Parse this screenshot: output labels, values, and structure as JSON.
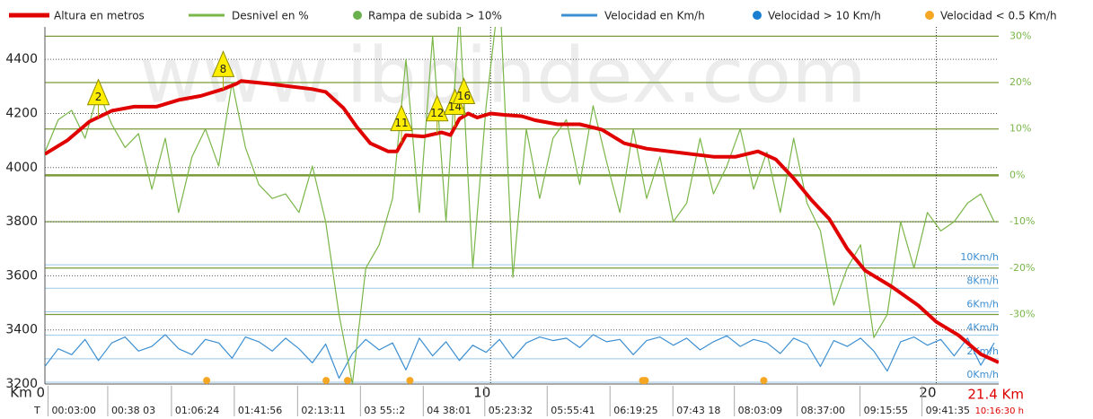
{
  "chart_data": {
    "type": "line",
    "watermark": "www.ibpindex.com",
    "xlim": [
      0,
      21.4
    ],
    "xticks": [
      {
        "value": 0,
        "label": "Km 0"
      },
      10,
      20
    ],
    "total_distance": {
      "value": 21.4,
      "label": "21.4 Km"
    },
    "total_time": "10:16:30 h",
    "time_prefix": "T",
    "time_ticks": [
      {
        "value": 0.15,
        "label": "00:03:00"
      },
      {
        "value": 1.49,
        "label": "00:38 03"
      },
      {
        "value": 2.92,
        "label": "01:06:24"
      },
      {
        "value": 4.33,
        "label": "01:41:56"
      },
      {
        "value": 5.75,
        "label": "02:13:11"
      },
      {
        "value": 7.16,
        "label": "03 55::2"
      },
      {
        "value": 8.57,
        "label": "04 38:01"
      },
      {
        "value": 9.95,
        "label": "05:23:32"
      },
      {
        "value": 11.35,
        "label": "05:55:41"
      },
      {
        "value": 12.76,
        "label": "06:19:25"
      },
      {
        "value": 14.17,
        "label": "07:43 18"
      },
      {
        "value": 15.55,
        "label": "08:03:09"
      },
      {
        "value": 16.96,
        "label": "08:37:00"
      },
      {
        "value": 18.37,
        "label": "09:15:55"
      },
      {
        "value": 19.76,
        "label": "09:41:35"
      }
    ],
    "ylim": [
      3200,
      4520
    ],
    "yticks": [
      3200,
      3400,
      3600,
      3800,
      4000,
      4200,
      4400
    ],
    "y2lim": [
      -45,
      32
    ],
    "y2ticks": [
      {
        "value": 30,
        "label": "30%"
      },
      {
        "value": 20,
        "label": "20%"
      },
      {
        "value": 10,
        "label": "10%"
      },
      {
        "value": 0,
        "label": "0%"
      },
      {
        "value": -10,
        "label": "-10%"
      },
      {
        "value": -20,
        "label": "-20%"
      },
      {
        "value": -30,
        "label": "-30%"
      }
    ],
    "y3lim": [
      0,
      30.4
    ],
    "y3ticks": [
      {
        "value": 10,
        "label": "10Km/h"
      },
      {
        "value": 8,
        "label": "8Km/h"
      },
      {
        "value": 6,
        "label": "6Km/h"
      },
      {
        "value": 4,
        "label": "4Km/h"
      },
      {
        "value": 2,
        "label": "2Km/h"
      },
      {
        "value": 0,
        "label": "0Km/h"
      }
    ],
    "series": [
      {
        "name": "Altura en metros",
        "color": "#e00000",
        "style": "line",
        "axis": "y",
        "x": [
          0,
          0.5,
          1.0,
          1.5,
          2,
          2.5,
          3,
          3.5,
          4,
          4.3,
          4.4,
          5,
          5.5,
          6,
          6.3,
          6.7,
          7,
          7.3,
          7.7,
          7.9,
          8.1,
          8.5,
          8.9,
          9.1,
          9.3,
          9.5,
          9.7,
          10,
          10.3,
          10.7,
          11,
          11.5,
          12,
          12.5,
          13,
          13.5,
          14,
          14.5,
          15,
          15.5,
          16,
          16.4,
          16.8,
          17.2,
          17.6,
          18,
          18.4,
          19,
          19.6,
          20,
          20.5,
          21,
          21.4
        ],
        "values": [
          4050,
          4100,
          4170,
          4210,
          4225,
          4225,
          4250,
          4265,
          4290,
          4310,
          4320,
          4310,
          4300,
          4290,
          4280,
          4220,
          4150,
          4090,
          4060,
          4060,
          4120,
          4115,
          4130,
          4120,
          4180,
          4200,
          4185,
          4200,
          4195,
          4190,
          4175,
          4160,
          4160,
          4140,
          4090,
          4070,
          4060,
          4050,
          4040,
          4040,
          4060,
          4030,
          3960,
          3880,
          3810,
          3700,
          3620,
          3560,
          3490,
          3430,
          3380,
          3310,
          3280
        ]
      },
      {
        "name": "Desnivel en %",
        "color": "#7ab648",
        "style": "line",
        "axis": "y2",
        "x": [
          0,
          0.3,
          0.6,
          0.9,
          1.2,
          1.5,
          1.8,
          2.1,
          2.4,
          2.7,
          3,
          3.3,
          3.6,
          3.9,
          4.2,
          4.5,
          4.8,
          5.1,
          5.4,
          5.7,
          6,
          6.3,
          6.6,
          6.9,
          7.2,
          7.5,
          7.8,
          8.1,
          8.4,
          8.7,
          9,
          9.3,
          9.6,
          9.9,
          10.2,
          10.5,
          10.8,
          11.1,
          11.4,
          11.7,
          12,
          12.3,
          12.6,
          12.9,
          13.2,
          13.5,
          13.8,
          14.1,
          14.4,
          14.7,
          15,
          15.3,
          15.6,
          15.9,
          16.2,
          16.5,
          16.8,
          17.1,
          17.4,
          17.7,
          18,
          18.3,
          18.6,
          18.9,
          19.2,
          19.5,
          19.8,
          20.1,
          20.4,
          20.7,
          21,
          21.3
        ],
        "values": [
          5,
          12,
          14,
          8,
          18,
          11,
          6,
          9,
          -3,
          8,
          -8,
          4,
          10,
          2,
          20,
          6,
          -2,
          -5,
          -4,
          -8,
          2,
          -10,
          -30,
          -45,
          -20,
          -15,
          -5,
          25,
          -8,
          30,
          -10,
          35,
          -20,
          15,
          40,
          -22,
          10,
          -5,
          8,
          12,
          -2,
          15,
          3,
          -8,
          10,
          -5,
          4,
          -10,
          -6,
          8,
          -4,
          2,
          10,
          -3,
          5,
          -8,
          8,
          -6,
          -12,
          -28,
          -20,
          -15,
          -35,
          -30,
          -10,
          -20,
          -8,
          -12,
          -10,
          -6,
          -4,
          -10
        ]
      },
      {
        "name": "Rampa de subida > 10%",
        "color": "#6ab04c",
        "style": "dot",
        "axis": "y2",
        "x": [],
        "values": []
      },
      {
        "name": "Velocidad en Km/h",
        "color": "#3d8fd1",
        "style": "line",
        "axis": "y3",
        "x": [
          0,
          0.3,
          0.6,
          0.9,
          1.2,
          1.5,
          1.8,
          2.1,
          2.4,
          2.7,
          3,
          3.3,
          3.6,
          3.9,
          4.2,
          4.5,
          4.8,
          5.1,
          5.4,
          5.7,
          6,
          6.3,
          6.6,
          6.9,
          7.2,
          7.5,
          7.8,
          8.1,
          8.4,
          8.7,
          9,
          9.3,
          9.6,
          9.9,
          10.2,
          10.5,
          10.8,
          11.1,
          11.4,
          11.7,
          12,
          12.3,
          12.6,
          12.9,
          13.2,
          13.5,
          13.8,
          14.1,
          14.4,
          14.7,
          15,
          15.3,
          15.6,
          15.9,
          16.2,
          16.5,
          16.8,
          17.1,
          17.4,
          17.7,
          18,
          18.3,
          18.6,
          18.9,
          19.2,
          19.5,
          19.8,
          20.1,
          20.4,
          20.7,
          21,
          21.3
        ],
        "values": [
          1.5,
          3,
          2.5,
          3.8,
          2,
          3.5,
          4,
          2.8,
          3.2,
          4.2,
          3,
          2.5,
          3.8,
          3.5,
          2.2,
          4,
          3.6,
          2.8,
          3.9,
          3,
          1.8,
          3.4,
          0.5,
          2.6,
          3.8,
          2.9,
          3.5,
          1.2,
          3.9,
          2.4,
          3.6,
          2,
          3.3,
          2.7,
          3.8,
          2.2,
          3.5,
          4,
          3.7,
          3.9,
          3.1,
          4.2,
          3.6,
          3.8,
          2.5,
          3.7,
          4,
          3.3,
          3.9,
          2.9,
          3.6,
          4.1,
          3.2,
          3.8,
          3.5,
          2.6,
          3.9,
          3.4,
          1.5,
          3.7,
          3.2,
          3.9,
          2.8,
          1.1,
          3.6,
          4,
          3.3,
          3.8,
          2.4,
          3.9,
          1.6,
          3.5
        ]
      },
      {
        "name": "Velocidad > 10 Km/h",
        "color": "#1a7fd0",
        "style": "dot",
        "axis": "y3",
        "x": [],
        "values": []
      },
      {
        "name": "Velocidad < 0.5 Km/h",
        "color": "#f5a623",
        "style": "dot",
        "axis": "y3",
        "x": [
          3.63,
          6.31,
          6.79,
          8.19,
          13.41,
          13.47,
          16.13
        ],
        "values": [
          0.3,
          0.3,
          0.3,
          0.3,
          0.3,
          0.3,
          0.3
        ]
      }
    ],
    "waypoints": [
      {
        "label": "2",
        "x": 1.2
      },
      {
        "label": "8",
        "x": 4.0
      },
      {
        "label": "11",
        "x": 8.0
      },
      {
        "label": "12",
        "x": 8.8
      },
      {
        "label": "14",
        "x": 9.2
      },
      {
        "label": "16",
        "x": 9.4
      }
    ]
  }
}
